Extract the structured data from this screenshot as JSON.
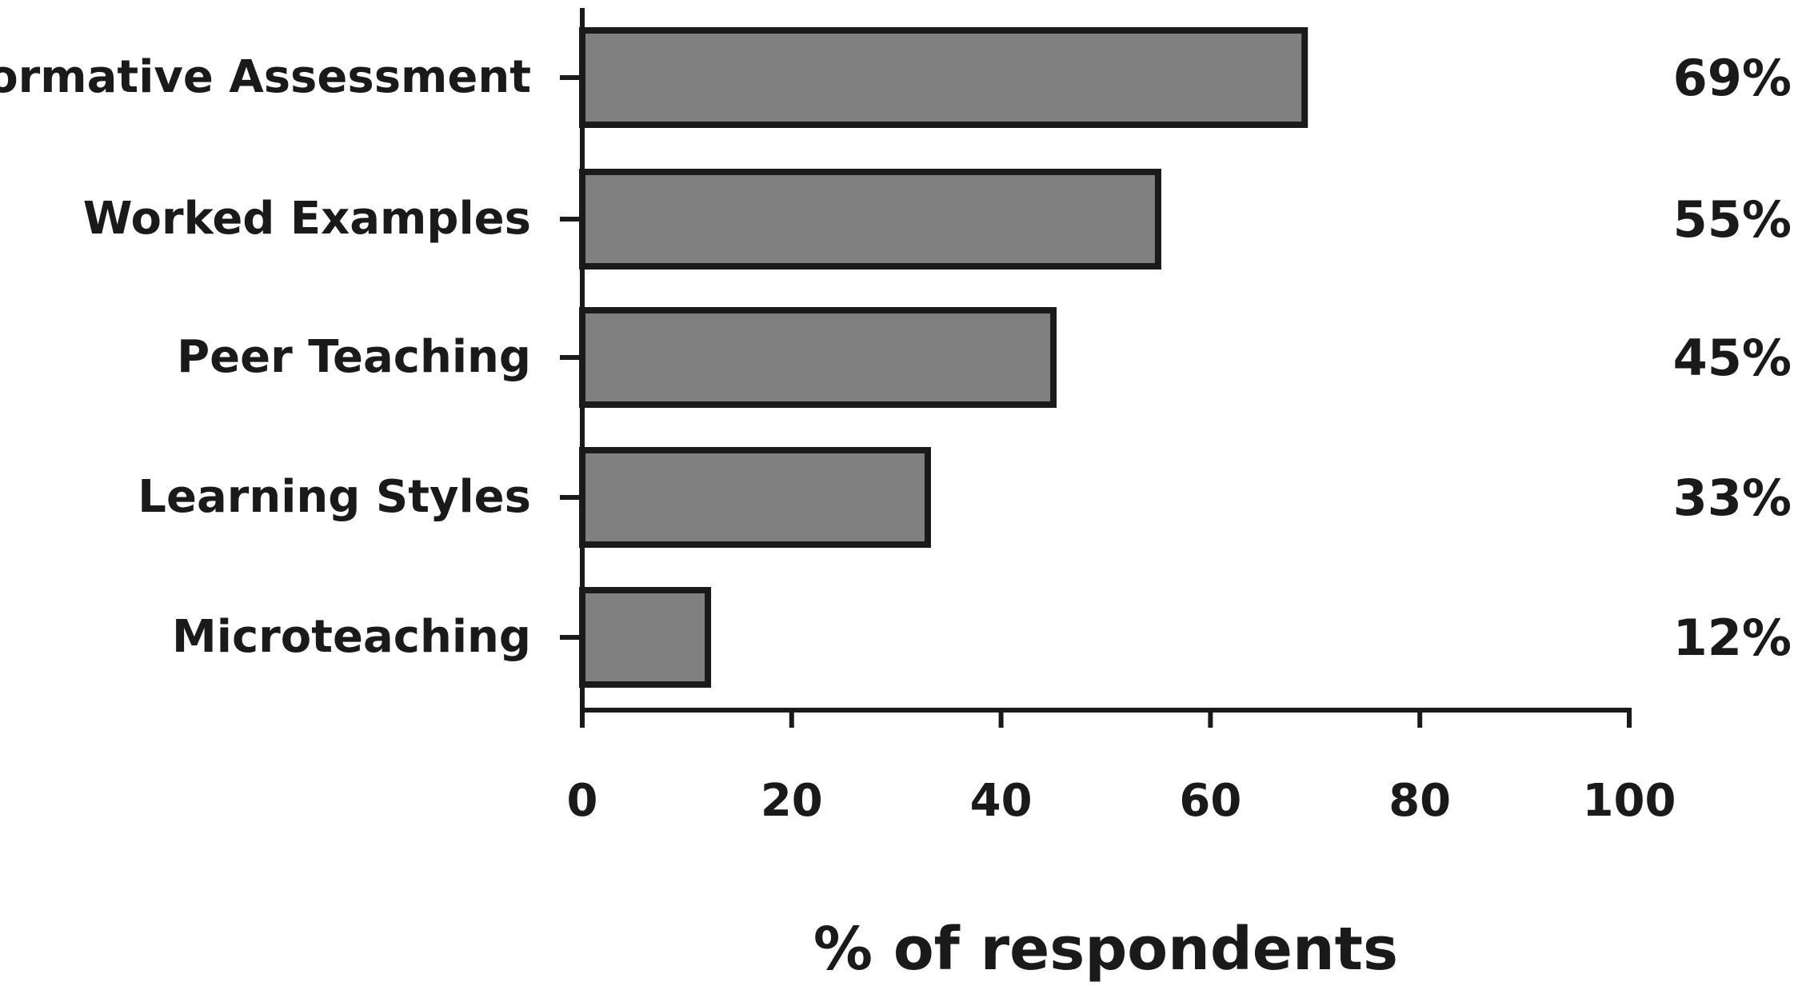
{
  "chart_data": {
    "type": "bar",
    "orientation": "horizontal",
    "categories": [
      "Formative Assessment",
      "Worked Examples",
      "Peer Teaching",
      "Learning Styles",
      "Microteaching"
    ],
    "values": [
      69,
      55,
      45,
      33,
      12
    ],
    "value_labels": [
      "69%",
      "55%",
      "45%",
      "33%",
      "12%"
    ],
    "xlabel": "% of respondents",
    "xlim": [
      0,
      100
    ],
    "xticks": [
      0,
      20,
      40,
      60,
      80,
      100
    ],
    "xtick_labels": [
      "0",
      "20",
      "40",
      "60",
      "80",
      "100"
    ],
    "grid": false,
    "legend": "none",
    "colors": {
      "bar_fill": "#808080",
      "bar_stroke": "#1a1a1a",
      "axis": "#1a1a1a",
      "text": "#1a1a1a"
    }
  }
}
